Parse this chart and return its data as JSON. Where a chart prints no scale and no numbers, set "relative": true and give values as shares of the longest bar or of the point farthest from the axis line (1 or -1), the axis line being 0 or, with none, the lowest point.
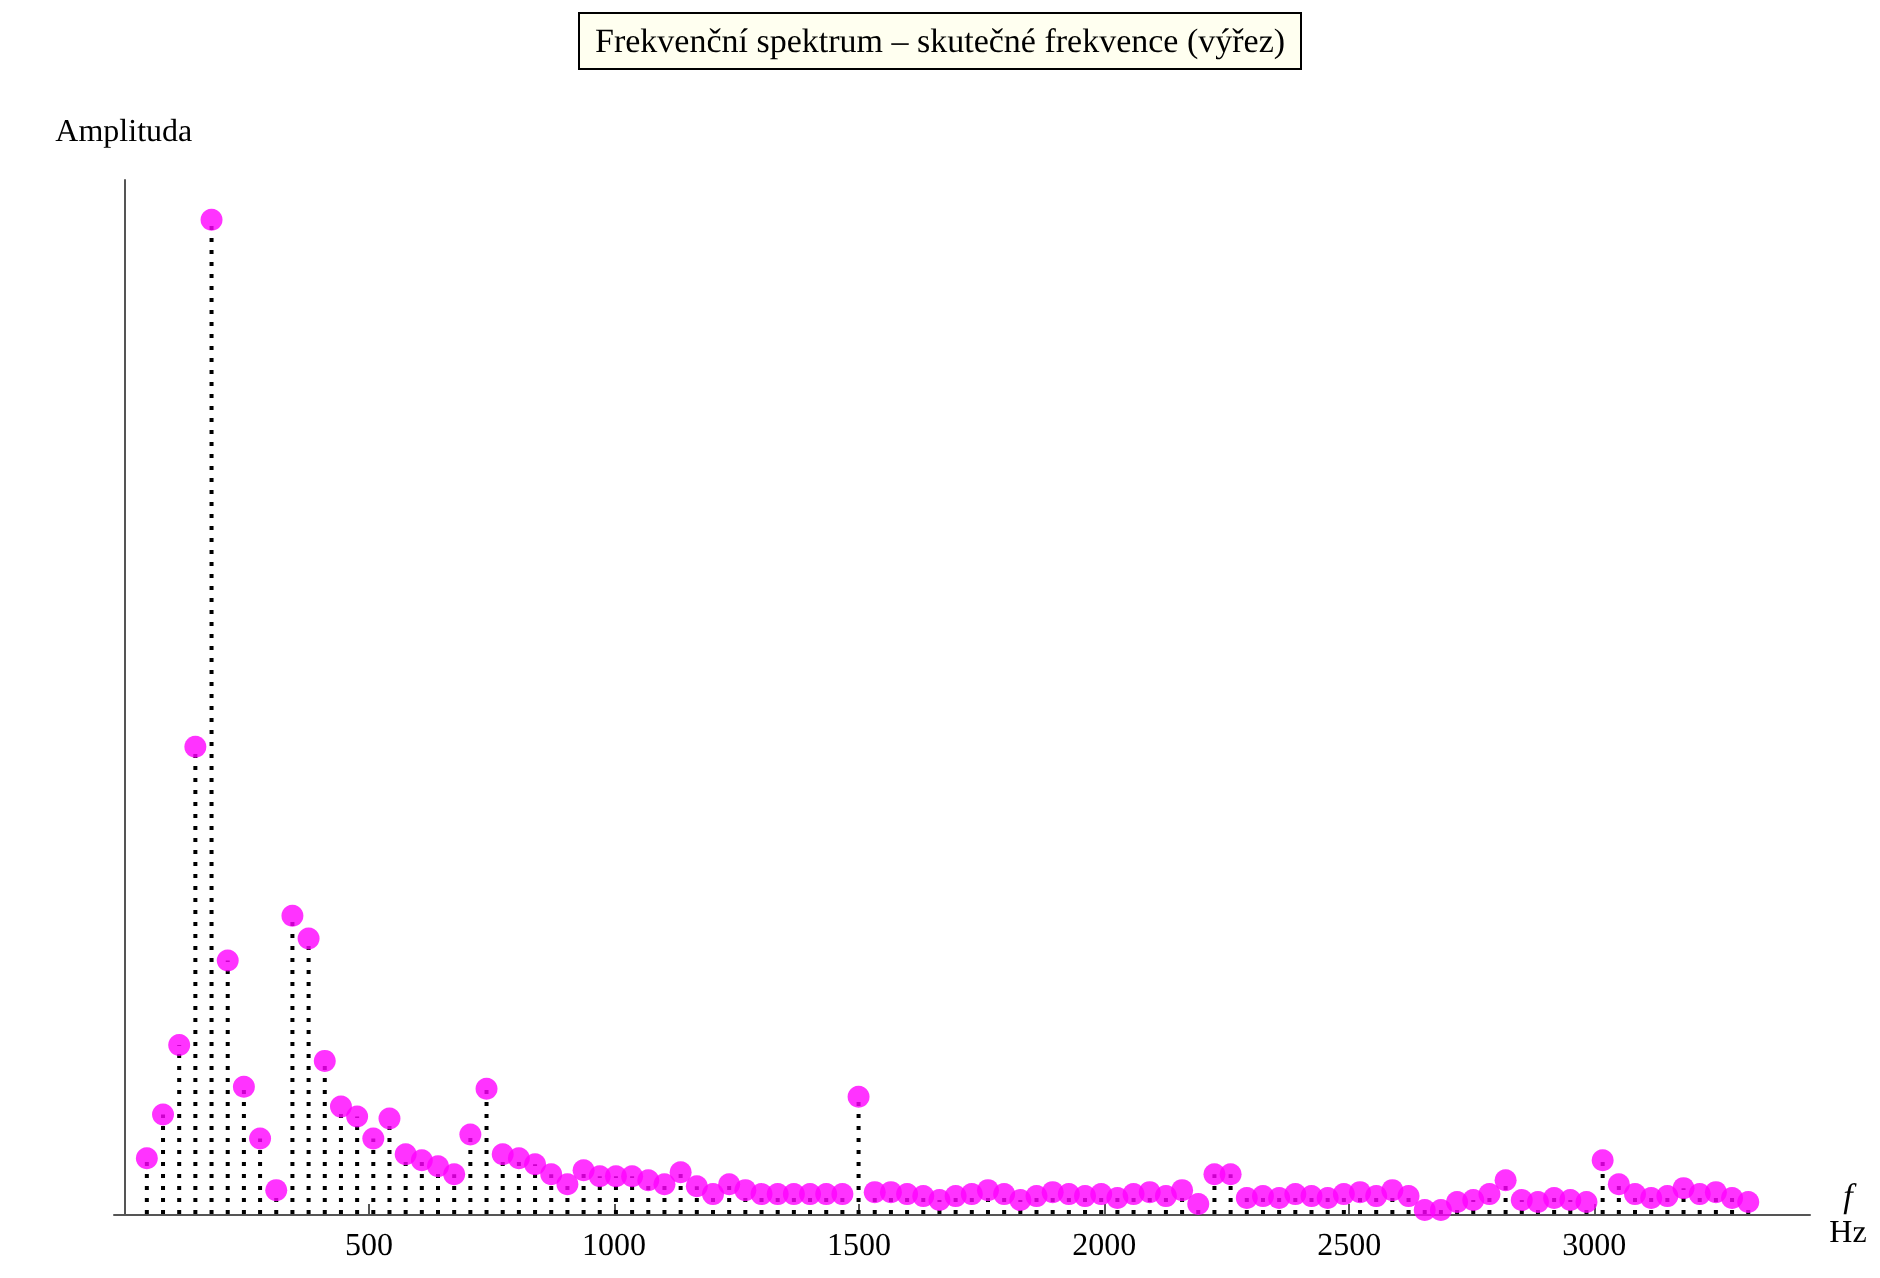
{
  "chart_data": {
    "type": "lollipop",
    "title": "Frekvenční spektrum – skutečné frekvence (výřez)",
    "xlabel": "f\nHz",
    "ylabel": "Amplituda",
    "relative": true,
    "marker": "circle",
    "line_style": "dotted",
    "xlim": [
      -20,
      3440
    ],
    "xticks": [
      500,
      1000,
      1500,
      2000,
      2500,
      3000
    ],
    "x": [
      47,
      80,
      113,
      146,
      179,
      212,
      245,
      278,
      311,
      344,
      377,
      410,
      443,
      476,
      509,
      542,
      575,
      608,
      641,
      674,
      707,
      740,
      773,
      806,
      839,
      872,
      905,
      938,
      971,
      1004,
      1037,
      1070,
      1103,
      1136,
      1169,
      1202,
      1235,
      1268,
      1301,
      1334,
      1367,
      1400,
      1433,
      1466,
      1499,
      1532,
      1565,
      1598,
      1631,
      1664,
      1697,
      1730,
      1763,
      1796,
      1829,
      1862,
      1895,
      1928,
      1961,
      1994,
      2027,
      2060,
      2093,
      2126,
      2159,
      2192,
      2225,
      2258,
      2291,
      2324,
      2357,
      2390,
      2423,
      2456,
      2489,
      2522,
      2555,
      2588,
      2621,
      2654,
      2687,
      2720,
      2753,
      2786,
      2819,
      2852,
      2885,
      2918,
      2951,
      2984,
      3017,
      3050,
      3083,
      3116,
      3149,
      3182,
      3215,
      3248,
      3281,
      3314
    ],
    "series": [
      {
        "color": "#ff00ff",
        "values": [
          0.056,
          0.1,
          0.17,
          0.47,
          1.0,
          0.255,
          0.128,
          0.076,
          0.024,
          0.3,
          0.277,
          0.154,
          0.108,
          0.098,
          0.076,
          0.096,
          0.06,
          0.054,
          0.048,
          0.04,
          0.08,
          0.126,
          0.06,
          0.056,
          0.05,
          0.04,
          0.03,
          0.044,
          0.038,
          0.038,
          0.038,
          0.034,
          0.03,
          0.042,
          0.028,
          0.02,
          0.03,
          0.024,
          0.02,
          0.02,
          0.02,
          0.02,
          0.02,
          0.02,
          0.118,
          0.022,
          0.022,
          0.02,
          0.018,
          0.014,
          0.018,
          0.02,
          0.024,
          0.02,
          0.014,
          0.018,
          0.022,
          0.02,
          0.018,
          0.02,
          0.016,
          0.02,
          0.022,
          0.018,
          0.024,
          0.01,
          0.04,
          0.04,
          0.016,
          0.018,
          0.016,
          0.02,
          0.018,
          0.016,
          0.02,
          0.022,
          0.018,
          0.024,
          0.018,
          0.004,
          0.004,
          0.012,
          0.014,
          0.02,
          0.034,
          0.014,
          0.012,
          0.016,
          0.014,
          0.012,
          0.054,
          0.03,
          0.02,
          0.016,
          0.018,
          0.026,
          0.02,
          0.022,
          0.016,
          0.012
        ]
      }
    ]
  }
}
